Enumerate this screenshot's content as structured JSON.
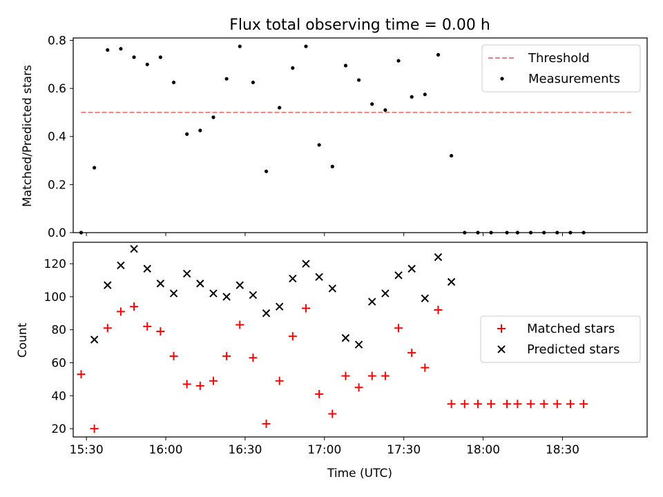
{
  "chart_data": [
    {
      "type": "scatter",
      "title": "Flux total observing time = 0.00 h",
      "xlabel": "",
      "ylabel": "Matched/Predicted stars",
      "xlim": [
        "15:25",
        "19:02"
      ],
      "ylim": [
        0.0,
        0.81
      ],
      "yticks": [
        0.0,
        0.2,
        0.4,
        0.6,
        0.8
      ],
      "yticklabels": [
        "0.0",
        "0.2",
        "0.4",
        "0.6",
        "0.8"
      ],
      "xticks": [
        "15:30",
        "16:00",
        "16:30",
        "17:00",
        "17:30",
        "18:00",
        "18:30"
      ],
      "legend": {
        "placement": "top-right",
        "entries": [
          "Threshold",
          "Measurements"
        ]
      },
      "threshold": {
        "name": "Threshold",
        "value": 0.5,
        "x_start": "15:28",
        "x_end": "18:56",
        "color": "#f08080"
      },
      "series": [
        {
          "name": "Measurements",
          "color": "#000000",
          "x": [
            "15:28",
            "15:33",
            "15:38",
            "15:43",
            "15:48",
            "15:53",
            "15:58",
            "16:03",
            "16:08",
            "16:13",
            "16:18",
            "16:23",
            "16:28",
            "16:33",
            "16:38",
            "16:43",
            "16:48",
            "16:53",
            "16:58",
            "17:03",
            "17:08",
            "17:13",
            "17:18",
            "17:23",
            "17:28",
            "17:33",
            "17:38",
            "17:43",
            "17:48",
            "17:53",
            "17:58",
            "18:03",
            "18:09",
            "18:13",
            "18:18",
            "18:23",
            "18:28",
            "18:33",
            "18:38"
          ],
          "y": [
            0.0,
            0.27,
            0.76,
            0.765,
            0.73,
            0.7,
            0.73,
            0.625,
            0.41,
            0.425,
            0.48,
            0.64,
            0.775,
            0.625,
            0.255,
            0.52,
            0.685,
            0.775,
            0.365,
            0.275,
            0.695,
            0.635,
            0.535,
            0.51,
            0.715,
            0.565,
            0.575,
            0.74,
            0.32,
            0.0,
            0.0,
            0.0,
            0.0,
            0.0,
            0.0,
            0.0,
            0.0,
            0.0,
            0.0
          ]
        }
      ]
    },
    {
      "type": "scatter",
      "title": "",
      "xlabel": "Time (UTC)",
      "ylabel": "Count",
      "xlim": [
        "15:25",
        "19:02"
      ],
      "ylim": [
        15,
        133
      ],
      "yticks": [
        20,
        40,
        60,
        80,
        100,
        120
      ],
      "yticklabels": [
        "20",
        "40",
        "60",
        "80",
        "100",
        "120"
      ],
      "xticks": [
        "15:30",
        "16:00",
        "16:30",
        "17:00",
        "17:30",
        "18:00",
        "18:30"
      ],
      "xticklabels": [
        "15:30",
        "16:00",
        "16:30",
        "17:00",
        "17:30",
        "18:00",
        "18:30"
      ],
      "legend": {
        "placement": "center-right",
        "entries": [
          "Matched stars",
          "Predicted stars"
        ]
      },
      "series": [
        {
          "name": "Matched stars",
          "marker": "+",
          "color": "#ff0000",
          "x": [
            "15:28",
            "15:33",
            "15:38",
            "15:43",
            "15:48",
            "15:53",
            "15:58",
            "16:03",
            "16:08",
            "16:13",
            "16:18",
            "16:23",
            "16:28",
            "16:33",
            "16:38",
            "16:43",
            "16:48",
            "16:53",
            "16:58",
            "17:03",
            "17:08",
            "17:13",
            "17:18",
            "17:23",
            "17:28",
            "17:33",
            "17:38",
            "17:43",
            "17:48",
            "17:53",
            "17:58",
            "18:03",
            "18:09",
            "18:13",
            "18:18",
            "18:23",
            "18:28",
            "18:33",
            "18:38"
          ],
          "y": [
            53,
            20,
            81,
            91,
            94,
            82,
            79,
            64,
            47,
            46,
            49,
            64,
            83,
            63,
            23,
            49,
            76,
            93,
            41,
            29,
            52,
            45,
            52,
            52,
            81,
            66,
            57,
            92,
            35,
            35,
            35,
            35,
            35,
            35,
            35,
            35,
            35,
            35,
            35
          ]
        },
        {
          "name": "Predicted stars",
          "marker": "x",
          "color": "#000000",
          "x": [
            "15:33",
            "15:38",
            "15:43",
            "15:48",
            "15:53",
            "15:58",
            "16:03",
            "16:08",
            "16:13",
            "16:18",
            "16:23",
            "16:28",
            "16:33",
            "16:38",
            "16:43",
            "16:48",
            "16:53",
            "16:58",
            "17:03",
            "17:08",
            "17:13",
            "17:18",
            "17:23",
            "17:28",
            "17:33",
            "17:38",
            "17:43",
            "17:48"
          ],
          "y": [
            74,
            107,
            119,
            129,
            117,
            108,
            102,
            114,
            108,
            102,
            100,
            107,
            101,
            90,
            94,
            111,
            120,
            112,
            105,
            75,
            71,
            97,
            102,
            113,
            117,
            99,
            124,
            109
          ]
        }
      ]
    }
  ]
}
